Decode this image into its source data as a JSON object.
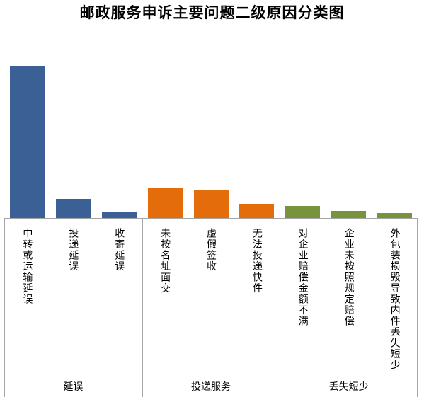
{
  "chart_data": {
    "type": "bar",
    "title": "邮政服务申诉主要问题二级原因分类图",
    "xlabel": "",
    "ylabel": "",
    "y_axis_visible": false,
    "grid": false,
    "legend": "none",
    "groups": [
      {
        "name": "延误",
        "color": "#3B6096",
        "categories": [
          "中转或运输延误",
          "投递延误",
          "收寄延误"
        ],
        "values": [
          1.0,
          0.126,
          0.037
        ]
      },
      {
        "name": "投递服务",
        "color": "#E46C0A",
        "categories": [
          "未按名址面交",
          "虚假签收",
          "无法投递快件"
        ],
        "values": [
          0.195,
          0.186,
          0.093
        ]
      },
      {
        "name": "丢失短少",
        "color": "#77933C",
        "categories": [
          "对企业赔偿金额不满",
          "企业未按照规定赔偿",
          "外包装损毁导致内件丢失短少"
        ],
        "values": [
          0.079,
          0.047,
          0.033
        ]
      }
    ]
  }
}
